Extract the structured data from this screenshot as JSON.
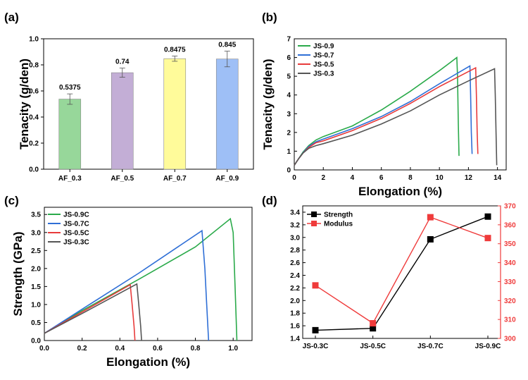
{
  "chart_data": [
    {
      "panel": "(a)",
      "type": "bar",
      "title": "",
      "xlabel": "",
      "ylabel": "Tenacity (g/den)",
      "ylim": [
        0,
        1.0
      ],
      "yticks": [
        "0.0",
        "0.2",
        "0.4",
        "0.6",
        "0.8",
        "1.0"
      ],
      "categories": [
        "AF_0.3",
        "AF_0.5",
        "AF_0.7",
        "AF_0.9"
      ],
      "values": [
        0.5375,
        0.74,
        0.8475,
        0.845
      ],
      "errors": [
        0.04,
        0.035,
        0.02,
        0.06
      ],
      "labels": [
        "0.5375",
        "0.74",
        "0.8475",
        "0.845"
      ],
      "colors": [
        "#97d79a",
        "#c3aed6",
        "#fffb9a",
        "#9ebff6"
      ]
    },
    {
      "panel": "(b)",
      "type": "line",
      "xlabel": "Elongation (%)",
      "ylabel": "Tenacity (g/den)",
      "xlim": [
        0,
        14.6
      ],
      "ylim": [
        0,
        7
      ],
      "xticks": [
        "0",
        "2",
        "4",
        "6",
        "8",
        "10",
        "12",
        "14"
      ],
      "yticks": [
        "0",
        "1",
        "2",
        "3",
        "4",
        "5",
        "6",
        "7"
      ],
      "legend": "top-left",
      "series": [
        {
          "name": "JS-0.9",
          "color": "#2aaa4a",
          "points": [
            [
              0,
              0.25
            ],
            [
              0.3,
              0.6
            ],
            [
              0.6,
              0.95
            ],
            [
              1,
              1.3
            ],
            [
              1.5,
              1.6
            ],
            [
              2,
              1.78
            ],
            [
              4,
              2.35
            ],
            [
              6,
              3.2
            ],
            [
              8,
              4.2
            ],
            [
              10,
              5.3
            ],
            [
              11.2,
              6.0
            ],
            [
              11.25,
              5.0
            ],
            [
              11.3,
              2.5
            ],
            [
              11.35,
              0.75
            ]
          ]
        },
        {
          "name": "JS-0.7",
          "color": "#2f6fd6",
          "points": [
            [
              0,
              0.25
            ],
            [
              0.3,
              0.6
            ],
            [
              0.6,
              0.92
            ],
            [
              1,
              1.25
            ],
            [
              1.5,
              1.5
            ],
            [
              2,
              1.65
            ],
            [
              4,
              2.2
            ],
            [
              6,
              2.85
            ],
            [
              8,
              3.65
            ],
            [
              10,
              4.6
            ],
            [
              12.1,
              5.55
            ],
            [
              12.15,
              4.0
            ],
            [
              12.2,
              2.0
            ],
            [
              12.25,
              0.85
            ]
          ]
        },
        {
          "name": "JS-0.5",
          "color": "#e83b3b",
          "points": [
            [
              0,
              0.25
            ],
            [
              0.3,
              0.6
            ],
            [
              0.6,
              0.9
            ],
            [
              1,
              1.2
            ],
            [
              1.5,
              1.45
            ],
            [
              2,
              1.55
            ],
            [
              4,
              2.1
            ],
            [
              6,
              2.75
            ],
            [
              8,
              3.55
            ],
            [
              10,
              4.45
            ],
            [
              12.5,
              5.45
            ],
            [
              12.55,
              4.0
            ],
            [
              12.6,
              2.0
            ],
            [
              12.65,
              0.85
            ]
          ]
        },
        {
          "name": "JS-0.3",
          "color": "#555555",
          "points": [
            [
              0,
              0.25
            ],
            [
              0.3,
              0.6
            ],
            [
              0.6,
              0.9
            ],
            [
              1,
              1.15
            ],
            [
              1.5,
              1.3
            ],
            [
              2,
              1.4
            ],
            [
              4,
              1.85
            ],
            [
              6,
              2.45
            ],
            [
              8,
              3.15
            ],
            [
              10,
              4.0
            ],
            [
              12,
              4.75
            ],
            [
              13.8,
              5.4
            ],
            [
              13.85,
              4.0
            ],
            [
              13.9,
              2.0
            ],
            [
              13.95,
              0.25
            ]
          ]
        }
      ]
    },
    {
      "panel": "(c)",
      "type": "line",
      "xlabel": "Elongation (%)",
      "ylabel": "Strength (GPa)",
      "xlim": [
        0,
        1.1
      ],
      "ylim": [
        0,
        3.7
      ],
      "xticks": [
        "0.0",
        "0.2",
        "0.4",
        "0.6",
        "0.8",
        "1.0"
      ],
      "yticks": [
        "0.0",
        "0.5",
        "1.0",
        "1.5",
        "2.0",
        "2.5",
        "3.0",
        "3.5"
      ],
      "legend": "top-left",
      "series": [
        {
          "name": "JS-0.9C",
          "color": "#2aaa4a",
          "points": [
            [
              0,
              0.2
            ],
            [
              0.2,
              0.83
            ],
            [
              0.5,
              1.7
            ],
            [
              0.8,
              2.6
            ],
            [
              0.985,
              3.38
            ],
            [
              1.0,
              3.0
            ],
            [
              1.01,
              1.5
            ],
            [
              1.02,
              0.0
            ]
          ]
        },
        {
          "name": "JS-0.7C",
          "color": "#2f6fd6",
          "points": [
            [
              0,
              0.2
            ],
            [
              0.2,
              0.87
            ],
            [
              0.5,
              1.87
            ],
            [
              0.835,
              3.05
            ],
            [
              0.85,
              2.0
            ],
            [
              0.86,
              1.0
            ],
            [
              0.87,
              0.0
            ]
          ]
        },
        {
          "name": "JS-0.5C",
          "color": "#e83b3b",
          "points": [
            [
              0,
              0.2
            ],
            [
              0.2,
              0.79
            ],
            [
              0.455,
              1.55
            ],
            [
              0.465,
              1.0
            ],
            [
              0.475,
              0.4
            ],
            [
              0.48,
              0.0
            ]
          ]
        },
        {
          "name": "JS-0.3C",
          "color": "#555555",
          "points": [
            [
              0,
              0.2
            ],
            [
              0.2,
              0.75
            ],
            [
              0.49,
              1.57
            ],
            [
              0.5,
              1.0
            ],
            [
              0.51,
              0.4
            ],
            [
              0.515,
              0.0
            ]
          ]
        }
      ]
    },
    {
      "panel": "(d)",
      "type": "line",
      "xlabel": "",
      "ylabel": "",
      "categories": [
        "JS-0.3C",
        "JS-0.5C",
        "JS-0.7C",
        "JS-0.9C"
      ],
      "ylim_left": [
        1.4,
        3.5
      ],
      "ylim_right": [
        300,
        370
      ],
      "yticks_left": [
        "1.4",
        "1.6",
        "1.8",
        "2.0",
        "2.2",
        "2.4",
        "2.6",
        "2.8",
        "3.0",
        "3.2",
        "3.4"
      ],
      "yticks_right": [
        "300",
        "310",
        "320",
        "330",
        "340",
        "350",
        "360",
        "370"
      ],
      "legend": "top-left",
      "series": [
        {
          "name": "Strength",
          "axis": "left",
          "color": "#000000",
          "values": [
            1.53,
            1.56,
            2.97,
            3.33
          ]
        },
        {
          "name": "Modulus",
          "axis": "right",
          "color": "#ef3b3b",
          "values": [
            328,
            308,
            364,
            353
          ]
        }
      ]
    }
  ]
}
